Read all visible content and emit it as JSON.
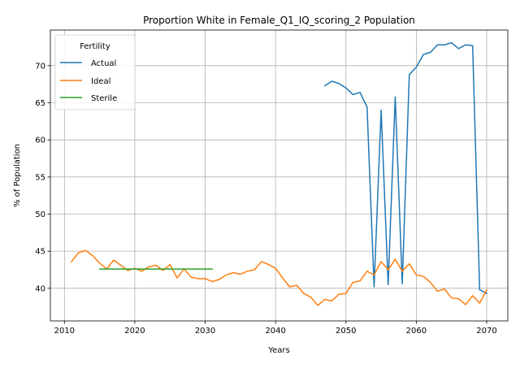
{
  "chart_data": {
    "type": "line",
    "title": "Proportion White in Female_Q1_IQ_scoring_2 Population",
    "xlabel": "Years",
    "ylabel": "% of Population",
    "xlim": [
      2008,
      2073
    ],
    "ylim": [
      35.6,
      74.8
    ],
    "xticks": [
      2010,
      2020,
      2030,
      2040,
      2050,
      2060,
      2070
    ],
    "yticks": [
      40,
      45,
      50,
      55,
      60,
      65,
      70
    ],
    "grid": true,
    "legend": {
      "title": "Fertility",
      "position": "upper-left"
    },
    "series": [
      {
        "name": "Actual",
        "color": "#1f77b4",
        "x": [
          2047,
          2048,
          2049,
          2050,
          2051,
          2052,
          2053,
          2054,
          2055,
          2056,
          2057,
          2058,
          2059,
          2060,
          2061,
          2062,
          2063,
          2064,
          2065,
          2066,
          2067,
          2068,
          2069,
          2070
        ],
        "y": [
          67.3,
          67.9,
          67.6,
          67.0,
          66.1,
          66.4,
          64.4,
          40.2,
          64.0,
          40.5,
          65.8,
          40.6,
          68.8,
          69.8,
          71.5,
          71.8,
          72.8,
          72.8,
          73.1,
          72.3,
          72.8,
          72.7,
          39.8,
          39.3
        ]
      },
      {
        "name": "Ideal",
        "color": "#ff7f0e",
        "x": [
          2011,
          2012,
          2013,
          2014,
          2015,
          2016,
          2017,
          2018,
          2019,
          2020,
          2021,
          2022,
          2023,
          2024,
          2025,
          2026,
          2027,
          2028,
          2029,
          2030,
          2031,
          2032,
          2033,
          2034,
          2035,
          2036,
          2037,
          2038,
          2039,
          2040,
          2041,
          2042,
          2043,
          2044,
          2045,
          2046,
          2047,
          2048,
          2049,
          2050,
          2051,
          2052,
          2053,
          2054,
          2055,
          2056,
          2057,
          2058,
          2059,
          2060,
          2061,
          2062,
          2063,
          2064,
          2065,
          2066,
          2067,
          2068,
          2069,
          2070
        ],
        "y": [
          43.6,
          44.8,
          45.1,
          44.4,
          43.4,
          42.6,
          43.8,
          43.1,
          42.4,
          42.7,
          42.3,
          42.9,
          43.1,
          42.4,
          43.2,
          41.4,
          42.6,
          41.5,
          41.3,
          41.3,
          40.9,
          41.2,
          41.8,
          42.1,
          41.9,
          42.3,
          42.5,
          43.6,
          43.2,
          42.7,
          41.4,
          40.2,
          40.4,
          39.3,
          38.8,
          37.7,
          38.5,
          38.3,
          39.2,
          39.3,
          40.8,
          41.0,
          42.3,
          41.8,
          43.6,
          42.5,
          43.9,
          42.3,
          43.3,
          41.8,
          41.6,
          40.8,
          39.6,
          39.9,
          38.7,
          38.6,
          37.8,
          39.0,
          38.0,
          39.8
        ]
      },
      {
        "name": "Sterile",
        "color": "#2ca02c",
        "x": [
          2015,
          2031
        ],
        "y": [
          42.6,
          42.6
        ]
      }
    ]
  }
}
